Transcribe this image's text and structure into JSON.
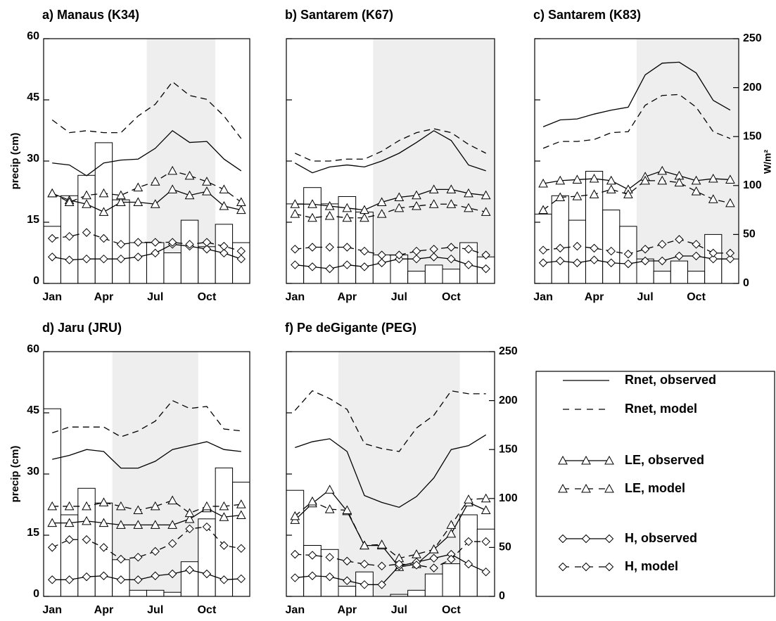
{
  "chart_data": [
    {
      "type": "bar-line",
      "title": "a) Manaus (K34)",
      "ylabel": "precip (cm)",
      "categories": [
        "Jan",
        null,
        null,
        "Apr",
        null,
        null,
        "Jul",
        null,
        null,
        "Oct",
        null,
        null
      ],
      "values": [
        14,
        21.5,
        26.5,
        34.5,
        20.5,
        10,
        10,
        7.5,
        15.5,
        9,
        14.5,
        10
      ],
      "color": "#ffffff",
      "shaded_xlim": [
        6,
        10
      ],
      "shade_color": "#eeeeee",
      "ylim": [
        0,
        60
      ],
      "yticks": [
        0,
        15,
        30,
        45,
        60
      ],
      "ytick_labels": true,
      "y2lim": [
        0,
        250
      ],
      "series": [
        {
          "name": "Rnet, observed",
          "color": "#000000",
          "dash": false,
          "marker": "none",
          "axis": "y2",
          "values": [
            123,
            121,
            110,
            123,
            126,
            127,
            138,
            156,
            144,
            145,
            127,
            115
          ]
        },
        {
          "name": "Rnet, model",
          "color": "#000000",
          "dash": true,
          "marker": "none",
          "axis": "y2",
          "values": [
            167,
            154,
            156,
            154,
            154,
            171,
            183,
            206,
            192,
            188,
            171,
            148
          ]
        },
        {
          "name": "LE, observed",
          "color": "#000000",
          "dash": false,
          "marker": "triangle",
          "axis": "y2",
          "values": [
            92,
            85,
            81,
            73,
            83,
            83,
            81,
            96,
            90,
            94,
            79,
            75
          ]
        },
        {
          "name": "LE, model",
          "color": "#000000",
          "dash": true,
          "marker": "triangle",
          "axis": "y2",
          "values": [
            92,
            83,
            90,
            92,
            90,
            98,
            104,
            115,
            110,
            104,
            96,
            83
          ]
        },
        {
          "name": "H, observed",
          "color": "#000000",
          "dash": false,
          "marker": "diamond",
          "axis": "y2",
          "values": [
            27,
            24,
            25,
            25,
            25,
            27,
            31,
            40,
            38,
            35,
            31,
            25
          ]
        },
        {
          "name": "H, model",
          "color": "#000000",
          "dash": true,
          "marker": "diamond",
          "axis": "y2",
          "values": [
            46,
            48,
            52,
            46,
            40,
            42,
            42,
            42,
            40,
            42,
            38,
            33
          ]
        }
      ]
    },
    {
      "type": "bar-line",
      "title": "b) Santarem (K67)",
      "categories": [
        "Jan",
        null,
        null,
        "Apr",
        null,
        null,
        "Jul",
        null,
        null,
        "Oct",
        null,
        null
      ],
      "values": [
        19.5,
        23.5,
        19.5,
        21.3,
        17.5,
        7,
        7,
        3,
        4.5,
        3.5,
        10,
        6.5
      ],
      "color": "#ffffff",
      "shaded_xlim": [
        5,
        12
      ],
      "shade_color": "#eeeeee",
      "ylim": [
        0,
        60
      ],
      "yticks": [
        0,
        15,
        30,
        45,
        60
      ],
      "ytick_labels": false,
      "y2lim": [
        0,
        250
      ],
      "series": [
        {
          "name": "Rnet, observed",
          "color": "#000000",
          "dash": false,
          "marker": "none",
          "axis": "y2",
          "values": [
            123,
            113,
            119,
            121,
            119,
            125,
            133,
            144,
            156,
            146,
            121,
            115
          ]
        },
        {
          "name": "Rnet, model",
          "color": "#000000",
          "dash": true,
          "marker": "none",
          "axis": "y2",
          "values": [
            133,
            125,
            125,
            127,
            127,
            135,
            146,
            154,
            158,
            154,
            142,
            133
          ]
        },
        {
          "name": "LE, observed",
          "color": "#000000",
          "dash": false,
          "marker": "triangle",
          "axis": "y2",
          "values": [
            81,
            81,
            79,
            77,
            75,
            83,
            88,
            90,
            96,
            96,
            92,
            90
          ]
        },
        {
          "name": "LE, model",
          "color": "#000000",
          "dash": true,
          "marker": "triangle",
          "axis": "y2",
          "values": [
            71,
            67,
            69,
            67,
            67,
            71,
            77,
            79,
            81,
            81,
            77,
            73
          ]
        },
        {
          "name": "H, observed",
          "color": "#000000",
          "dash": false,
          "marker": "diamond",
          "axis": "y2",
          "values": [
            19,
            17,
            15,
            19,
            17,
            21,
            25,
            25,
            27,
            25,
            19,
            15
          ]
        },
        {
          "name": "H, model",
          "color": "#000000",
          "dash": true,
          "marker": "diamond",
          "axis": "y2",
          "values": [
            35,
            37,
            37,
            37,
            33,
            29,
            29,
            33,
            35,
            37,
            35,
            29
          ]
        }
      ]
    },
    {
      "type": "bar-line",
      "title": "c) Santarem (K83)",
      "y2label": "W/m²",
      "categories": [
        "Jan",
        null,
        null,
        "Apr",
        null,
        null,
        "Jul",
        null,
        null,
        "Oct",
        null,
        null
      ],
      "values": [
        17,
        21.5,
        15.5,
        27.5,
        18,
        14,
        6,
        3,
        5.5,
        3,
        12,
        6
      ],
      "color": "#ffffff",
      "shaded_xlim": [
        6,
        12
      ],
      "shade_color": "#eeeeee",
      "ylim": [
        0,
        60
      ],
      "yticks": [
        0,
        15,
        30,
        45,
        60
      ],
      "ytick_labels": false,
      "y2lim": [
        0,
        250
      ],
      "y2ticks": [
        0,
        50,
        100,
        150,
        200,
        250
      ],
      "series": [
        {
          "name": "Rnet, observed",
          "color": "#000000",
          "dash": false,
          "marker": "none",
          "axis": "y2",
          "values": [
            160,
            167,
            168,
            173,
            177,
            180,
            213,
            225,
            226,
            215,
            187,
            177
          ]
        },
        {
          "name": "Rnet, model",
          "color": "#000000",
          "dash": true,
          "marker": "none",
          "axis": "y2",
          "values": [
            138,
            145,
            145,
            147,
            154,
            155,
            182,
            192,
            193,
            180,
            155,
            148
          ]
        },
        {
          "name": "LE, observed",
          "color": "#000000",
          "dash": false,
          "marker": "triangle",
          "axis": "y2",
          "values": [
            102,
            105,
            106,
            107,
            105,
            96,
            109,
            115,
            110,
            105,
            107,
            106
          ]
        },
        {
          "name": "LE, model",
          "color": "#000000",
          "dash": true,
          "marker": "triangle",
          "axis": "y2",
          "values": [
            75,
            88,
            89,
            91,
            96,
            91,
            105,
            105,
            103,
            94,
            86,
            82
          ]
        },
        {
          "name": "H, observed",
          "color": "#000000",
          "dash": false,
          "marker": "diamond",
          "axis": "y2",
          "values": [
            21,
            23,
            21,
            24,
            21,
            20,
            23,
            23,
            28,
            28,
            25,
            25
          ]
        },
        {
          "name": "H, model",
          "color": "#000000",
          "dash": true,
          "marker": "diamond",
          "axis": "y2",
          "values": [
            34,
            36,
            38,
            36,
            33,
            30,
            35,
            40,
            45,
            40,
            31,
            31
          ]
        }
      ]
    },
    {
      "type": "bar-line",
      "title": "d) Jaru (JRU)",
      "ylabel": "precip (cm)",
      "categories": [
        "Jan",
        null,
        null,
        "Apr",
        null,
        null,
        "Jul",
        null,
        null,
        "Oct",
        null,
        null
      ],
      "values": [
        46,
        20,
        26.5,
        22.9,
        9,
        1.5,
        1.5,
        1,
        8.5,
        19,
        31.5,
        28
      ],
      "color": "#ffffff",
      "shaded_xlim": [
        4,
        9
      ],
      "shade_color": "#eeeeee",
      "ylim": [
        0,
        60
      ],
      "yticks": [
        0,
        15,
        30,
        45,
        60
      ],
      "ytick_labels": true,
      "y2lim": [
        0,
        250
      ],
      "series": [
        {
          "name": "Rnet, observed",
          "color": "#000000",
          "dash": false,
          "marker": "none",
          "axis": "y2",
          "values": [
            140,
            144,
            150,
            148,
            131,
            131,
            138,
            150,
            154,
            158,
            150,
            148
          ]
        },
        {
          "name": "Rnet, model",
          "color": "#000000",
          "dash": true,
          "marker": "none",
          "axis": "y2",
          "values": [
            167,
            173,
            173,
            173,
            163,
            169,
            179,
            200,
            192,
            194,
            171,
            169
          ]
        },
        {
          "name": "LE, observed",
          "color": "#000000",
          "dash": false,
          "marker": "triangle",
          "axis": "y2",
          "values": [
            75,
            75,
            77,
            75,
            73,
            73,
            73,
            73,
            79,
            90,
            81,
            83
          ]
        },
        {
          "name": "LE, model",
          "color": "#000000",
          "dash": true,
          "marker": "triangle",
          "axis": "y2",
          "values": [
            92,
            92,
            92,
            96,
            92,
            88,
            92,
            98,
            85,
            92,
            92,
            94
          ]
        },
        {
          "name": "H, observed",
          "color": "#000000",
          "dash": false,
          "marker": "diamond",
          "axis": "y2",
          "values": [
            17,
            17,
            20,
            21,
            17,
            17,
            21,
            23,
            27,
            23,
            17,
            18
          ]
        },
        {
          "name": "H, model",
          "color": "#000000",
          "dash": true,
          "marker": "diamond",
          "axis": "y2",
          "values": [
            50,
            58,
            58,
            50,
            38,
            40,
            46,
            54,
            69,
            71,
            52,
            49
          ]
        }
      ]
    },
    {
      "type": "bar-line",
      "title": "f) Pe deGigante (PEG)",
      "categories": [
        "Jan",
        null,
        null,
        "Apr",
        null,
        null,
        "Jul",
        null,
        null,
        "Oct",
        null,
        null
      ],
      "values": [
        26,
        12.5,
        11.5,
        2.5,
        6,
        0,
        0.5,
        1.5,
        5.5,
        8,
        20,
        16.5
      ],
      "color": "#ffffff",
      "shaded_xlim": [
        3,
        10
      ],
      "shade_color": "#eeeeee",
      "ylim": [
        0,
        60
      ],
      "yticks": [
        0,
        15,
        30,
        45,
        60
      ],
      "ytick_labels": false,
      "y2lim": [
        0,
        250
      ],
      "y2ticks": [
        0,
        50,
        100,
        150,
        200,
        250
      ],
      "series": [
        {
          "name": "Rnet, observed",
          "color": "#000000",
          "dash": false,
          "marker": "none",
          "axis": "y2",
          "values": [
            152,
            158,
            161,
            148,
            103,
            96,
            91,
            102,
            121,
            150,
            154,
            165
          ]
        },
        {
          "name": "Rnet, model",
          "color": "#000000",
          "dash": true,
          "marker": "none",
          "axis": "y2",
          "values": [
            190,
            210,
            202,
            191,
            156,
            151,
            148,
            172,
            185,
            210,
            207,
            207
          ]
        },
        {
          "name": "LE, observed",
          "color": "#000000",
          "dash": false,
          "marker": "triangle",
          "axis": "y2",
          "values": [
            78,
            95,
            109,
            87,
            52,
            52,
            30,
            33,
            48,
            64,
            96,
            88
          ]
        },
        {
          "name": "LE, model",
          "color": "#000000",
          "dash": true,
          "marker": "triangle",
          "axis": "y2",
          "values": [
            82,
            97,
            89,
            88,
            52,
            53,
            39,
            43,
            48,
            73,
            99,
            100
          ]
        },
        {
          "name": "H, observed",
          "color": "#000000",
          "dash": false,
          "marker": "diamond",
          "axis": "y2",
          "values": [
            19,
            21,
            20,
            16,
            12,
            12,
            31,
            35,
            39,
            43,
            33,
            25
          ]
        },
        {
          "name": "H, model",
          "color": "#000000",
          "dash": true,
          "marker": "diamond",
          "axis": "y2",
          "values": [
            43,
            42,
            40,
            36,
            33,
            31,
            33,
            32,
            29,
            38,
            56,
            56
          ]
        }
      ]
    }
  ]
}
